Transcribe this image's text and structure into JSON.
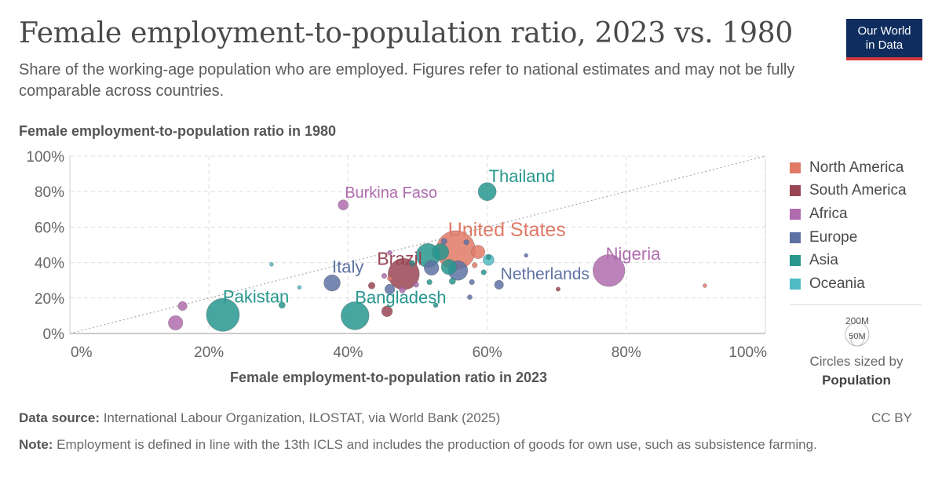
{
  "header": {
    "title": "Female employment-to-population ratio, 2023 vs. 1980",
    "subtitle": "Share of the working-age population who are employed. Figures refer to national estimates and may not be fully comparable across countries.",
    "logo_line1": "Our World",
    "logo_line2": "in Data"
  },
  "footer": {
    "source_label": "Data source:",
    "source_text": " International Labour Organization, ILOSTAT, via World Bank (2025)",
    "license": "CC BY",
    "note_label": "Note:",
    "note_text": " Employment is defined in line with the 13th ICLS and includes the production of goods for own use, such as subsistence farming."
  },
  "legend": {
    "regions": [
      {
        "name": "North America",
        "color": "#e07a67"
      },
      {
        "name": "South America",
        "color": "#9a4554"
      },
      {
        "name": "Africa",
        "color": "#b06cae"
      },
      {
        "name": "Europe",
        "color": "#5e72a3"
      },
      {
        "name": "Asia",
        "color": "#27978e"
      },
      {
        "name": "Oceania",
        "color": "#4fbbc2"
      }
    ],
    "size_big": "200M",
    "size_small": "50M",
    "size_caption": "Circles sized by",
    "size_variable": "Population"
  },
  "chart_data": {
    "type": "scatter",
    "xlabel": "Female employment-to-population ratio in 2023",
    "ylabel": "Female employment-to-population ratio in 1980",
    "xlim": [
      0,
      100
    ],
    "ylim": [
      0,
      100
    ],
    "xticks": [
      "0%",
      "20%",
      "40%",
      "60%",
      "80%",
      "100%"
    ],
    "yticks": [
      "0%",
      "20%",
      "40%",
      "60%",
      "80%",
      "100%"
    ],
    "grid": true,
    "legend_position": "right",
    "diagonal_reference_line": true,
    "points": [
      {
        "label": "United States",
        "region": "North America",
        "x": 55.5,
        "y": 47,
        "pop": 335
      },
      {
        "label": "Brazil",
        "region": "South America",
        "x": 48,
        "y": 33.5,
        "pop": 216
      },
      {
        "label": "Nigeria",
        "region": "Africa",
        "x": 77.5,
        "y": 35.5,
        "pop": 224
      },
      {
        "label": "Burkina Faso",
        "region": "Africa",
        "x": 39.3,
        "y": 72.5,
        "pop": 23
      },
      {
        "label": "Thailand",
        "region": "Asia",
        "x": 60,
        "y": 80,
        "pop": 72
      },
      {
        "label": "Italy",
        "region": "Europe",
        "x": 37.7,
        "y": 28.5,
        "pop": 59
      },
      {
        "label": "Netherlands",
        "region": "Europe",
        "x": 61.7,
        "y": 27.5,
        "pop": 18
      },
      {
        "label": "Pakistan",
        "region": "Asia",
        "x": 22,
        "y": 10.5,
        "pop": 240
      },
      {
        "label": "Bangladesh",
        "region": "Asia",
        "x": 41,
        "y": 10,
        "pop": 173
      },
      {
        "label": "",
        "region": "Asia",
        "x": 51.5,
        "y": 44,
        "pop": 126
      },
      {
        "label": "",
        "region": "Asia",
        "x": 53.3,
        "y": 46,
        "pop": 60
      },
      {
        "label": "",
        "region": "Europe",
        "x": 55.8,
        "y": 35.5,
        "pop": 84
      },
      {
        "label": "",
        "region": "Europe",
        "x": 52,
        "y": 37,
        "pop": 48
      },
      {
        "label": "",
        "region": "Asia",
        "x": 54.5,
        "y": 37.5,
        "pop": 52
      },
      {
        "label": "",
        "region": "Europe",
        "x": 46,
        "y": 25,
        "pop": 22
      },
      {
        "label": "",
        "region": "Africa",
        "x": 15.2,
        "y": 6,
        "pop": 46
      },
      {
        "label": "",
        "region": "Africa",
        "x": 16.2,
        "y": 15.5,
        "pop": 18
      },
      {
        "label": "",
        "region": "South America",
        "x": 45.6,
        "y": 12.5,
        "pop": 26
      },
      {
        "label": "",
        "region": "South America",
        "x": 43.4,
        "y": 27,
        "pop": 10
      },
      {
        "label": "",
        "region": "North America",
        "x": 58.7,
        "y": 46,
        "pop": 40
      },
      {
        "label": "",
        "region": "North America",
        "x": 91.3,
        "y": 27,
        "pop": 3
      },
      {
        "label": "",
        "region": "South America",
        "x": 70.2,
        "y": 25,
        "pop": 4
      },
      {
        "label": "",
        "region": "Europe",
        "x": 65.6,
        "y": 44,
        "pop": 3
      },
      {
        "label": "",
        "region": "Oceania",
        "x": 60.2,
        "y": 41.5,
        "pop": 27
      },
      {
        "label": "",
        "region": "Asia",
        "x": 60.2,
        "y": 43,
        "pop": 5
      },
      {
        "label": "",
        "region": "Oceania",
        "x": 29,
        "y": 39,
        "pop": 2
      },
      {
        "label": "",
        "region": "Oceania",
        "x": 33,
        "y": 26,
        "pop": 2
      },
      {
        "label": "",
        "region": "Asia",
        "x": 30.5,
        "y": 16,
        "pop": 9
      },
      {
        "label": "",
        "region": "Asia",
        "x": 55,
        "y": 29.5,
        "pop": 9
      },
      {
        "label": "",
        "region": "Africa",
        "x": 46,
        "y": 45.5,
        "pop": 5
      },
      {
        "label": "",
        "region": "North America",
        "x": 46,
        "y": 31,
        "pop": 5
      },
      {
        "label": "",
        "region": "Europe",
        "x": 57.5,
        "y": 20.5,
        "pop": 5
      },
      {
        "label": "",
        "region": "Asia",
        "x": 59.5,
        "y": 34.5,
        "pop": 6
      },
      {
        "label": "",
        "region": "Europe",
        "x": 57.8,
        "y": 29,
        "pop": 6
      },
      {
        "label": "",
        "region": "Asia",
        "x": 51.7,
        "y": 29,
        "pop": 6
      },
      {
        "label": "",
        "region": "Africa",
        "x": 49.8,
        "y": 27.5,
        "pop": 6
      },
      {
        "label": "",
        "region": "Africa",
        "x": 47.8,
        "y": 24.5,
        "pop": 8
      },
      {
        "label": "",
        "region": "North America",
        "x": 58.2,
        "y": 38.5,
        "pop": 6
      },
      {
        "label": "",
        "region": "Europe",
        "x": 57,
        "y": 51.5,
        "pop": 6
      },
      {
        "label": "",
        "region": "Africa",
        "x": 45.2,
        "y": 32.5,
        "pop": 6
      },
      {
        "label": "",
        "region": "Asia",
        "x": 49.2,
        "y": 39.5,
        "pop": 8
      },
      {
        "label": "",
        "region": "Europe",
        "x": 53.8,
        "y": 52,
        "pop": 8
      },
      {
        "label": "",
        "region": "Asia",
        "x": 52.6,
        "y": 16,
        "pop": 5
      }
    ]
  }
}
